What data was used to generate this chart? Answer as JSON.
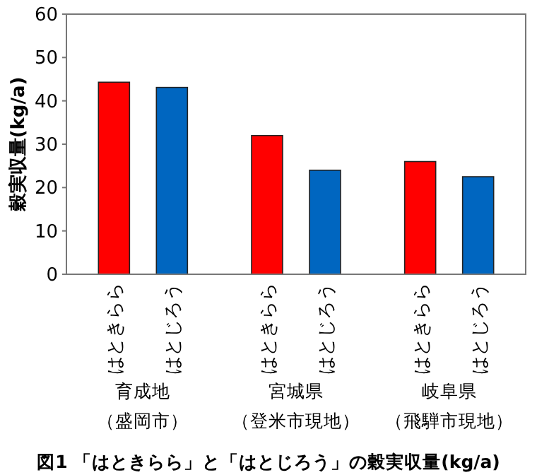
{
  "chart_data": {
    "type": "bar",
    "title": "図1 「はときらら」と「はとじろう」の穀実収量(kg/a)",
    "ylabel": "穀実収量(kg/a)",
    "categories": [
      "育成地（盛岡市）",
      "宮城県（登米市現地）",
      "岐阜県（飛騨市現地）"
    ],
    "series": [
      {
        "name": "はときらら",
        "color": "#ff0000",
        "values": [
          44.3,
          32,
          26
        ]
      },
      {
        "name": "はとじろう",
        "color": "#0066c0",
        "values": [
          43.1,
          24,
          22.5
        ]
      }
    ],
    "ylim": [
      0,
      60
    ],
    "yticks": [
      0,
      10,
      20,
      30,
      40,
      50,
      60
    ],
    "grid": false
  }
}
